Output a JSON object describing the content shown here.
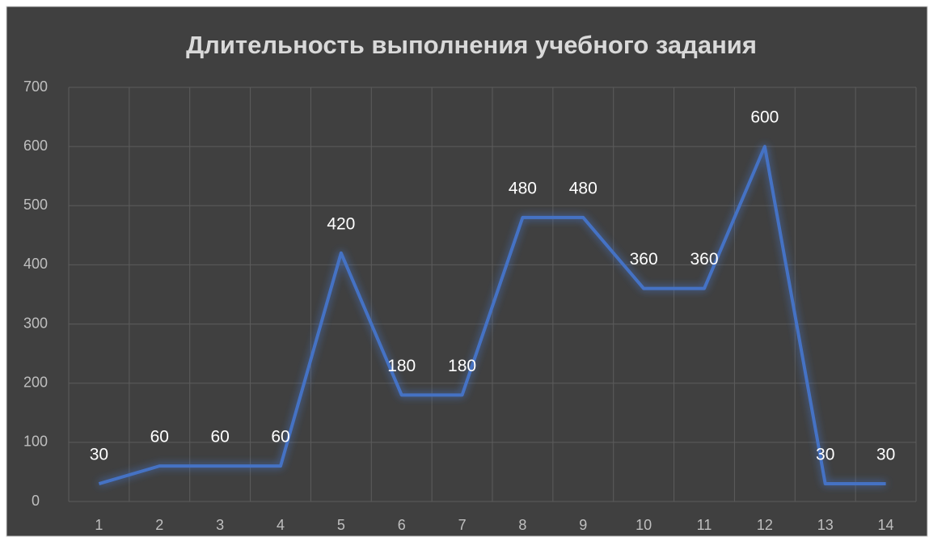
{
  "chart_data": {
    "type": "line",
    "title": "Длительность выполнения учебного задания",
    "categories": [
      "1",
      "2",
      "3",
      "4",
      "5",
      "6",
      "7",
      "8",
      "9",
      "10",
      "11",
      "12",
      "13",
      "14"
    ],
    "values": [
      30,
      60,
      60,
      60,
      420,
      180,
      180,
      480,
      480,
      360,
      360,
      600,
      30,
      30
    ],
    "color": "#4472c4",
    "ylim": [
      0,
      700
    ],
    "yticks": [
      0,
      100,
      200,
      300,
      400,
      500,
      600,
      700
    ],
    "grid": true
  }
}
